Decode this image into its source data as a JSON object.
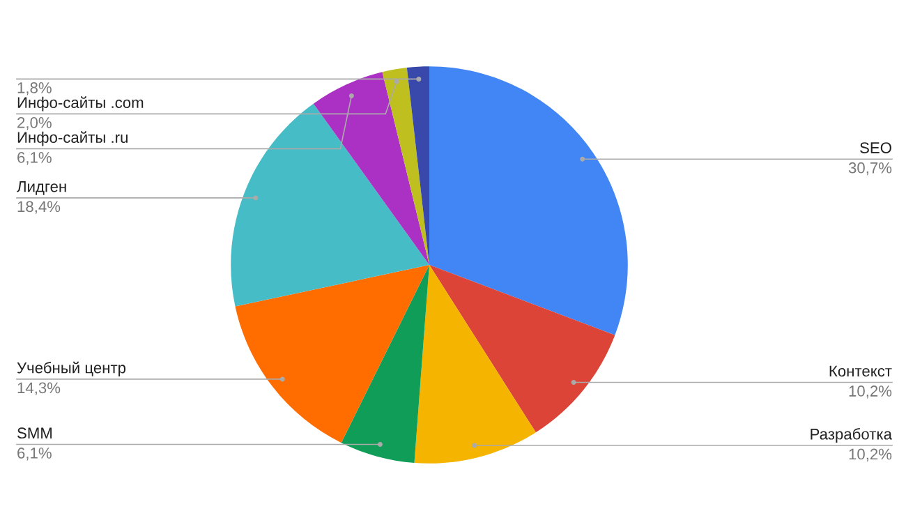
{
  "chart_data": {
    "type": "pie",
    "categories": [
      "SEO",
      "Контекст",
      "Разработка",
      "SMM",
      "Учебный центр",
      "Лидген",
      "Инфо-сайты .ru",
      "Инфо-сайты .com",
      null
    ],
    "values": [
      30.7,
      10.2,
      10.2,
      6.1,
      14.3,
      18.4,
      6.1,
      2.0,
      1.8
    ],
    "value_labels": [
      "30,7%",
      "10,2%",
      "10,2%",
      "6,1%",
      "14,3%",
      "18,4%",
      "6,1%",
      "2,0%",
      "1,8%"
    ],
    "colors": [
      "#4285f4",
      "#db4437",
      "#f4b400",
      "#0f9d58",
      "#ff6d00",
      "#46bdc6",
      "#ab30c4",
      "#bfbf20",
      "#3949ab"
    ]
  }
}
